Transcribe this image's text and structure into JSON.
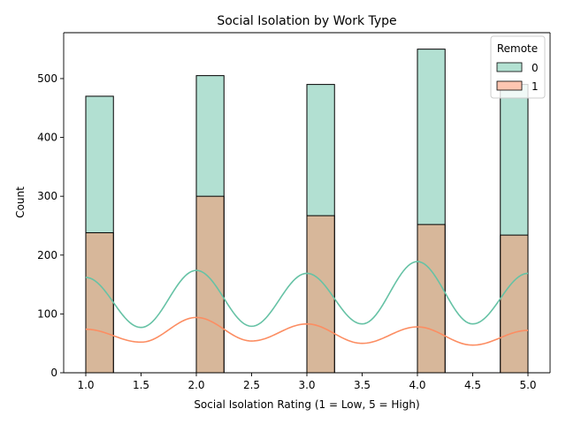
{
  "chart_data": {
    "type": "bar",
    "title": "Social Isolation by Work Type",
    "xlabel": "Social Isolation Rating (1 = Low, 5 = High)",
    "ylabel": "Count",
    "xlim": [
      0.8,
      5.2
    ],
    "ylim": [
      0,
      578
    ],
    "x_ticks": [
      "1.0",
      "1.5",
      "2.0",
      "2.5",
      "3.0",
      "3.5",
      "4.0",
      "4.5",
      "5.0"
    ],
    "y_ticks": [
      "0",
      "100",
      "200",
      "300",
      "400",
      "500"
    ],
    "grid": false,
    "bin_width": 0.25,
    "bins": [
      1.0,
      2.0,
      3.0,
      4.0,
      4.75
    ],
    "legend": {
      "title": "Remote",
      "placement": "top-right"
    },
    "series": [
      {
        "name": "0",
        "color": "#66c2a5",
        "values": [
          470,
          505,
          490,
          550,
          490
        ],
        "kde": [
          [
            1.0,
            162
          ],
          [
            1.5,
            77
          ],
          [
            2.0,
            174
          ],
          [
            2.5,
            79
          ],
          [
            3.0,
            169
          ],
          [
            3.5,
            83
          ],
          [
            4.0,
            189
          ],
          [
            4.5,
            83
          ],
          [
            5.0,
            169
          ]
        ]
      },
      {
        "name": "1",
        "color": "#fc8d62",
        "values": [
          238,
          300,
          267,
          252,
          234
        ],
        "kde": [
          [
            1.0,
            74
          ],
          [
            1.5,
            52
          ],
          [
            2.0,
            94
          ],
          [
            2.5,
            54
          ],
          [
            3.0,
            83
          ],
          [
            3.5,
            50
          ],
          [
            4.0,
            78
          ],
          [
            4.5,
            47
          ],
          [
            5.0,
            72
          ]
        ]
      }
    ]
  }
}
